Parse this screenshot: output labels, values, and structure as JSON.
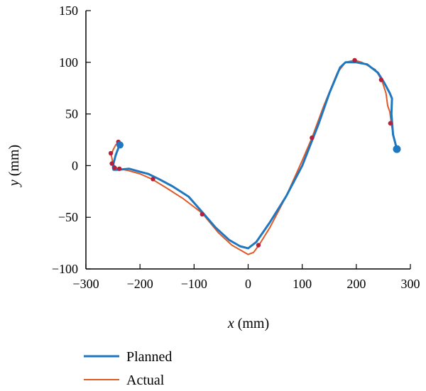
{
  "chart_data": {
    "type": "line",
    "xlabel_var": "x",
    "xlabel_unit": "(mm)",
    "ylabel_var": "y",
    "ylabel_unit": "(mm)",
    "xlim": [
      -300,
      300
    ],
    "ylim": [
      -100,
      150
    ],
    "xticks": [
      -300,
      -200,
      -100,
      0,
      100,
      200,
      300
    ],
    "yticks": [
      -100,
      -50,
      0,
      50,
      100,
      150
    ],
    "xtick_labels": [
      "−300",
      "−200",
      "−100",
      "0",
      "100",
      "200",
      "300"
    ],
    "ytick_labels": [
      "−100",
      "−50",
      "0",
      "50",
      "100",
      "150"
    ],
    "grid": false,
    "legend_position": "bottom-left",
    "series": [
      {
        "name": "Planned",
        "color": "#1f77c0",
        "x": [
          -237,
          -240,
          -245,
          -249,
          -250,
          -249,
          -240,
          -220,
          -200,
          -185,
          -165,
          -140,
          -110,
          -85,
          -60,
          -35,
          -15,
          0,
          15,
          40,
          70,
          100,
          130,
          150,
          170,
          180,
          200,
          220,
          240,
          252,
          262,
          266,
          265,
          268,
          275
        ],
        "y": [
          20,
          17,
          10,
          2,
          -2,
          -4,
          -4,
          -3,
          -6,
          -8,
          -13,
          -20,
          -30,
          -45,
          -60,
          -72,
          -78,
          -80,
          -74,
          -55,
          -30,
          0,
          40,
          70,
          95,
          100,
          100,
          98,
          90,
          80,
          70,
          65,
          50,
          30,
          16
        ],
        "start": [
          -237,
          20
        ],
        "end": [
          275,
          16
        ]
      },
      {
        "name": "Actual",
        "color": "#e05a28",
        "x": [
          -240,
          -245,
          -250,
          -253,
          -250,
          -245,
          -238,
          -220,
          -200,
          -178,
          -150,
          -120,
          -85,
          -55,
          -30,
          -10,
          0,
          10,
          20,
          40,
          70,
          100,
          118,
          140,
          165,
          180,
          197,
          210,
          235,
          247,
          255,
          258,
          262,
          265,
          273
        ],
        "y": [
          23,
          20,
          15,
          10,
          2,
          -2,
          -3,
          -5,
          -8,
          -13,
          -22,
          -32,
          -46,
          -65,
          -77,
          -83,
          -86,
          -84,
          -77,
          -60,
          -30,
          5,
          27,
          58,
          90,
          100,
          102,
          100,
          93,
          83,
          70,
          58,
          52,
          40,
          18
        ],
        "markers_x": [
          -240,
          -254,
          -252,
          -247,
          -238,
          -176,
          -85,
          19,
          118,
          197,
          246,
          263
        ],
        "markers_y": [
          23,
          12,
          2,
          -2,
          -3,
          -13,
          -47,
          -77,
          27,
          102,
          83,
          41
        ]
      }
    ]
  }
}
